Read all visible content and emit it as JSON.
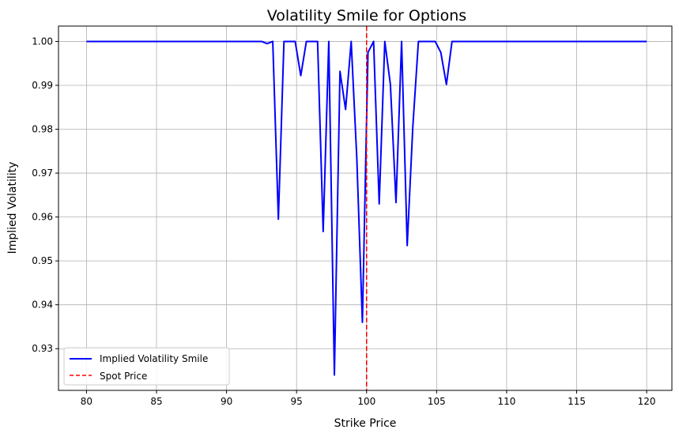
{
  "chart_data": {
    "type": "line",
    "title": "Volatility Smile for Options",
    "xlabel": "Strike Price",
    "ylabel": "Implied Volatility",
    "xlim": [
      78.0,
      121.8
    ],
    "ylim": [
      0.9205,
      1.0035
    ],
    "x_ticks": [
      80,
      85,
      90,
      95,
      100,
      105,
      110,
      115,
      120
    ],
    "x_tick_labels": [
      "80",
      "85",
      "90",
      "95",
      "100",
      "105",
      "110",
      "115",
      "120"
    ],
    "y_ticks": [
      0.93,
      0.94,
      0.95,
      0.96,
      0.97,
      0.98,
      0.99,
      1.0
    ],
    "y_tick_labels": [
      "0.93",
      "0.94",
      "0.95",
      "0.96",
      "0.97",
      "0.98",
      "0.99",
      "1.00"
    ],
    "grid": true,
    "legend_position": "lower-left",
    "series": [
      {
        "name": "Implied Volatility Smile",
        "color": "#0000ff",
        "style": "solid",
        "x": [
          80,
          92.5,
          92.9,
          93.3,
          93.7,
          94.1,
          94.5,
          94.9,
          95.3,
          95.7,
          96.1,
          96.5,
          96.9,
          97.3,
          97.7,
          98.1,
          98.5,
          98.9,
          99.3,
          99.7,
          100.1,
          100.5,
          100.9,
          101.3,
          101.7,
          102.1,
          102.5,
          102.9,
          103.3,
          103.7,
          104.1,
          104.5,
          104.9,
          105.3,
          105.7,
          106.1,
          120
        ],
        "y": [
          1.0,
          1.0,
          0.9995,
          1.0,
          0.9595,
          1.0,
          1.0,
          1.0,
          0.9922,
          1.0,
          1.0,
          1.0,
          0.9567,
          1.0,
          0.924,
          0.9932,
          0.9845,
          1.0,
          0.9735,
          0.936,
          0.9975,
          1.0,
          0.963,
          1.0,
          0.9902,
          0.9633,
          1.0,
          0.9535,
          0.9805,
          1.0,
          1.0,
          1.0,
          1.0,
          0.9975,
          0.9902,
          1.0,
          1.0
        ]
      },
      {
        "name": "Spot Price",
        "color": "#ff0000",
        "style": "dashed",
        "x_value": 100
      }
    ]
  }
}
